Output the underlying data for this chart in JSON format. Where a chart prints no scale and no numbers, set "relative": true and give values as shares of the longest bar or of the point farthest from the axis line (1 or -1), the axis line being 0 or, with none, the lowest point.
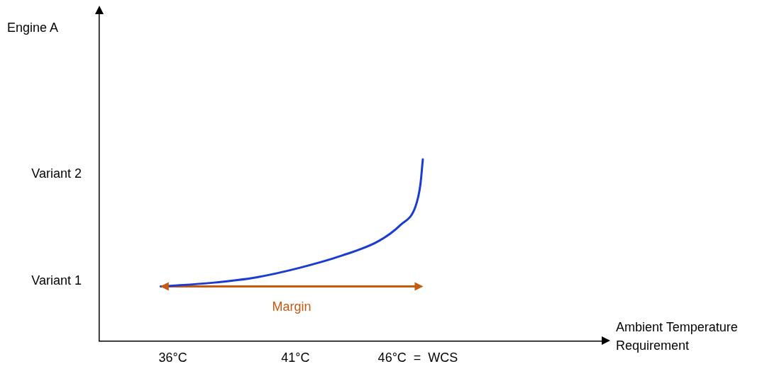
{
  "chart_data": {
    "type": "line",
    "relative": true,
    "xlabel": "Ambient Temperature\nRequirement",
    "xlim": [
      33,
      53.5
    ],
    "xticks": [
      {
        "value": 36,
        "label": "36°C"
      },
      {
        "value": 41,
        "label": "41°C"
      },
      {
        "value": 46,
        "label": "46°C  =  WCS"
      }
    ],
    "annotations": [
      "Engine A",
      "Variant 2",
      "Variant 1"
    ],
    "grid": false,
    "legend": false,
    "series": [
      {
        "color": "#1a3cd0",
        "x": [
          35.5,
          37.6,
          39.4,
          41.1,
          42.9,
          44.4,
          45.3,
          45.9,
          46.1,
          46.2
        ],
        "values": [
          0.3,
          0.32,
          0.35,
          0.4,
          0.47,
          0.55,
          0.64,
          0.74,
          0.86,
          1
        ]
      },
      {
        "name": "Margin",
        "color": "#c55a11",
        "marker": "triangle",
        "x": [
          35.6,
          46.1
        ],
        "values": [
          0.3,
          0.3
        ]
      }
    ]
  }
}
